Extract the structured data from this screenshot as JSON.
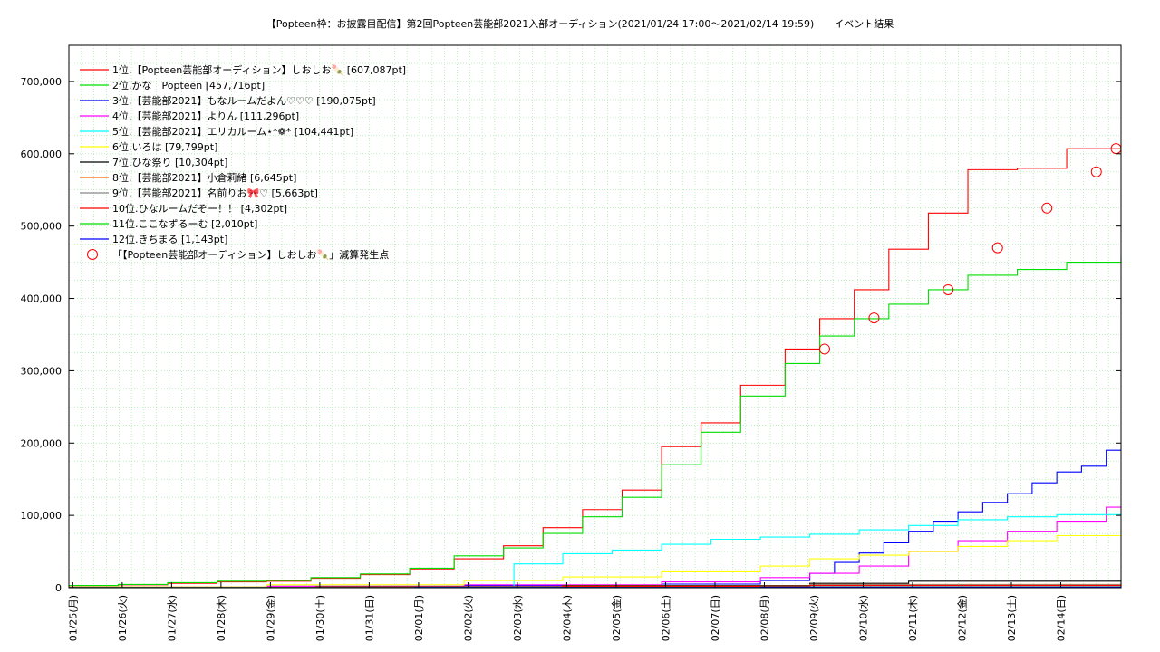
{
  "chart_data": {
    "type": "line",
    "title": "【Popteen枠：お披露目配信】第2回Popteen芸能部2021入部オーディション(2021/01/24 17:00〜2021/02/14 19:59)　　イベント結果",
    "xlabel": "",
    "ylabel": "",
    "ylim": [
      0,
      750000
    ],
    "yticks": [
      "0",
      "100,000",
      "200,000",
      "300,000",
      "400,000",
      "500,000",
      "600,000",
      "700,000"
    ],
    "yvalues": [
      0,
      100000,
      200000,
      300000,
      400000,
      500000,
      600000,
      700000
    ],
    "xlim": [
      0,
      21.3
    ],
    "xticks": [
      "01/25(月)",
      "01/26(火)",
      "01/27(水)",
      "01/28(木)",
      "01/29(金)",
      "01/30(土)",
      "01/31(日)",
      "02/01(月)",
      "02/02(火)",
      "02/03(水)",
      "02/04(木)",
      "02/05(金)",
      "02/06(土)",
      "02/07(日)",
      "02/08(月)",
      "02/09(火)",
      "02/10(水)",
      "02/11(木)",
      "02/12(金)",
      "02/13(土)",
      "02/14(日)"
    ],
    "grid": true,
    "legend_position": "top-left",
    "series": [
      {
        "name": "1位.【Popteen芸能部オーディション】しおしお🍡 [607,087pt]",
        "color": "#ff0000",
        "x": [
          0,
          1,
          2,
          3,
          4,
          4.9,
          5.9,
          6.9,
          7.8,
          8.8,
          9.6,
          10.4,
          11.2,
          12.0,
          12.8,
          13.6,
          14.5,
          15.2,
          15.9,
          16.6,
          17.4,
          18.2,
          19.2,
          20.2,
          21.3
        ],
        "y": [
          3000,
          4000,
          6000,
          8000,
          9000,
          13000,
          18000,
          26000,
          40000,
          58000,
          83000,
          108000,
          135000,
          195000,
          228000,
          280000,
          330000,
          372000,
          412000,
          468000,
          518000,
          578000,
          580000,
          607087,
          607087
        ]
      },
      {
        "name": "2位.かな　Popteen [457,716pt]",
        "color": "#00dd00",
        "x": [
          0,
          1,
          2,
          3,
          4,
          4.9,
          5.9,
          6.9,
          7.8,
          8.8,
          9.6,
          10.4,
          11.2,
          12.0,
          12.8,
          13.6,
          14.5,
          15.2,
          15.9,
          16.6,
          17.4,
          18.2,
          19.2,
          20.2,
          21.3
        ],
        "y": [
          3000,
          4500,
          7000,
          9000,
          10000,
          14000,
          19000,
          27000,
          44000,
          55000,
          75000,
          98000,
          125000,
          170000,
          215000,
          265000,
          310000,
          348000,
          372000,
          392000,
          412000,
          432000,
          440000,
          450000,
          457716
        ]
      },
      {
        "name": "3位.【芸能部2021】もなルームだよん♡♡♡ [190,075pt]",
        "color": "#0000ff",
        "x": [
          0,
          4,
          8,
          12,
          14,
          15,
          15.5,
          16,
          16.5,
          17,
          17.5,
          18,
          18.5,
          19,
          19.5,
          20,
          20.5,
          21,
          21.3
        ],
        "y": [
          1000,
          2000,
          3000,
          5000,
          10000,
          20000,
          35000,
          48000,
          62000,
          78000,
          92000,
          105000,
          118000,
          130000,
          145000,
          160000,
          168000,
          190075,
          190075
        ]
      },
      {
        "name": "4位.【芸能部2021】よりん [111,296pt]",
        "color": "#ff00ff",
        "x": [
          0,
          4,
          8,
          12,
          14,
          15,
          16,
          17,
          18,
          19,
          20,
          21,
          21.3
        ],
        "y": [
          1000,
          2000,
          4000,
          8000,
          14000,
          20000,
          30000,
          50000,
          65000,
          78000,
          92000,
          111296,
          111296
        ]
      },
      {
        "name": "5位.【芸能部2021】エリカルーム⋆*❁* [104,441pt]",
        "color": "#00ffff",
        "x": [
          0,
          9,
          9.01,
          10,
          11,
          12,
          13,
          14,
          15,
          16,
          17,
          18,
          19,
          20,
          21.3
        ],
        "y": [
          0,
          1000,
          33000,
          47000,
          52000,
          60000,
          67000,
          70000,
          74000,
          80000,
          86000,
          94000,
          98000,
          101000,
          104441
        ]
      },
      {
        "name": "6位.いろは [79,799pt]",
        "color": "#ffff00",
        "x": [
          0,
          4,
          8,
          10,
          12,
          14,
          15,
          16,
          17,
          18,
          19,
          20,
          21.3
        ],
        "y": [
          1000,
          4000,
          10000,
          15000,
          22000,
          30000,
          40000,
          45000,
          50000,
          57000,
          65000,
          72000,
          79799
        ]
      },
      {
        "name": "7位.ひな祭り [10,304pt]",
        "color": "#000000",
        "x": [
          0,
          5,
          10,
          15,
          17,
          21.3
        ],
        "y": [
          500,
          1500,
          3000,
          6000,
          9000,
          10304
        ]
      },
      {
        "name": "8位.【芸能部2021】小倉莉緒 [6,645pt]",
        "color": "#ff6600",
        "x": [
          0,
          5,
          10,
          15,
          21.3
        ],
        "y": [
          500,
          1200,
          2500,
          4500,
          6645
        ]
      },
      {
        "name": "9位.【芸能部2021】名前りお🎀♡ [5,663pt]",
        "color": "#888888",
        "x": [
          0,
          5,
          10,
          15,
          21.3
        ],
        "y": [
          400,
          1000,
          2000,
          4000,
          5663
        ]
      },
      {
        "name": "10位.ひなルームだぞー！！ [4,302pt]",
        "color": "#ff0000",
        "x": [
          0,
          5,
          10,
          15,
          21.3
        ],
        "y": [
          300,
          800,
          1800,
          3000,
          4302
        ]
      },
      {
        "name": "11位.ここなずるーむ [2,010pt]",
        "color": "#00dd00",
        "x": [
          0,
          7,
          14,
          21.3
        ],
        "y": [
          200,
          600,
          1200,
          2010
        ]
      },
      {
        "name": "12位.きちまる [1,143pt]",
        "color": "#0000ff",
        "x": [
          0,
          7,
          14,
          21.3
        ],
        "y": [
          100,
          400,
          800,
          1143
        ]
      }
    ],
    "markers": {
      "name": "「【Popteen芸能部オーディション】しおしお🍡」減算発生点",
      "color": "#ff0000",
      "x": [
        15.3,
        16.3,
        17.8,
        18.8,
        19.8,
        20.8,
        21.2
      ],
      "y": [
        330000,
        373000,
        412000,
        470000,
        525000,
        575000,
        607087
      ]
    }
  }
}
